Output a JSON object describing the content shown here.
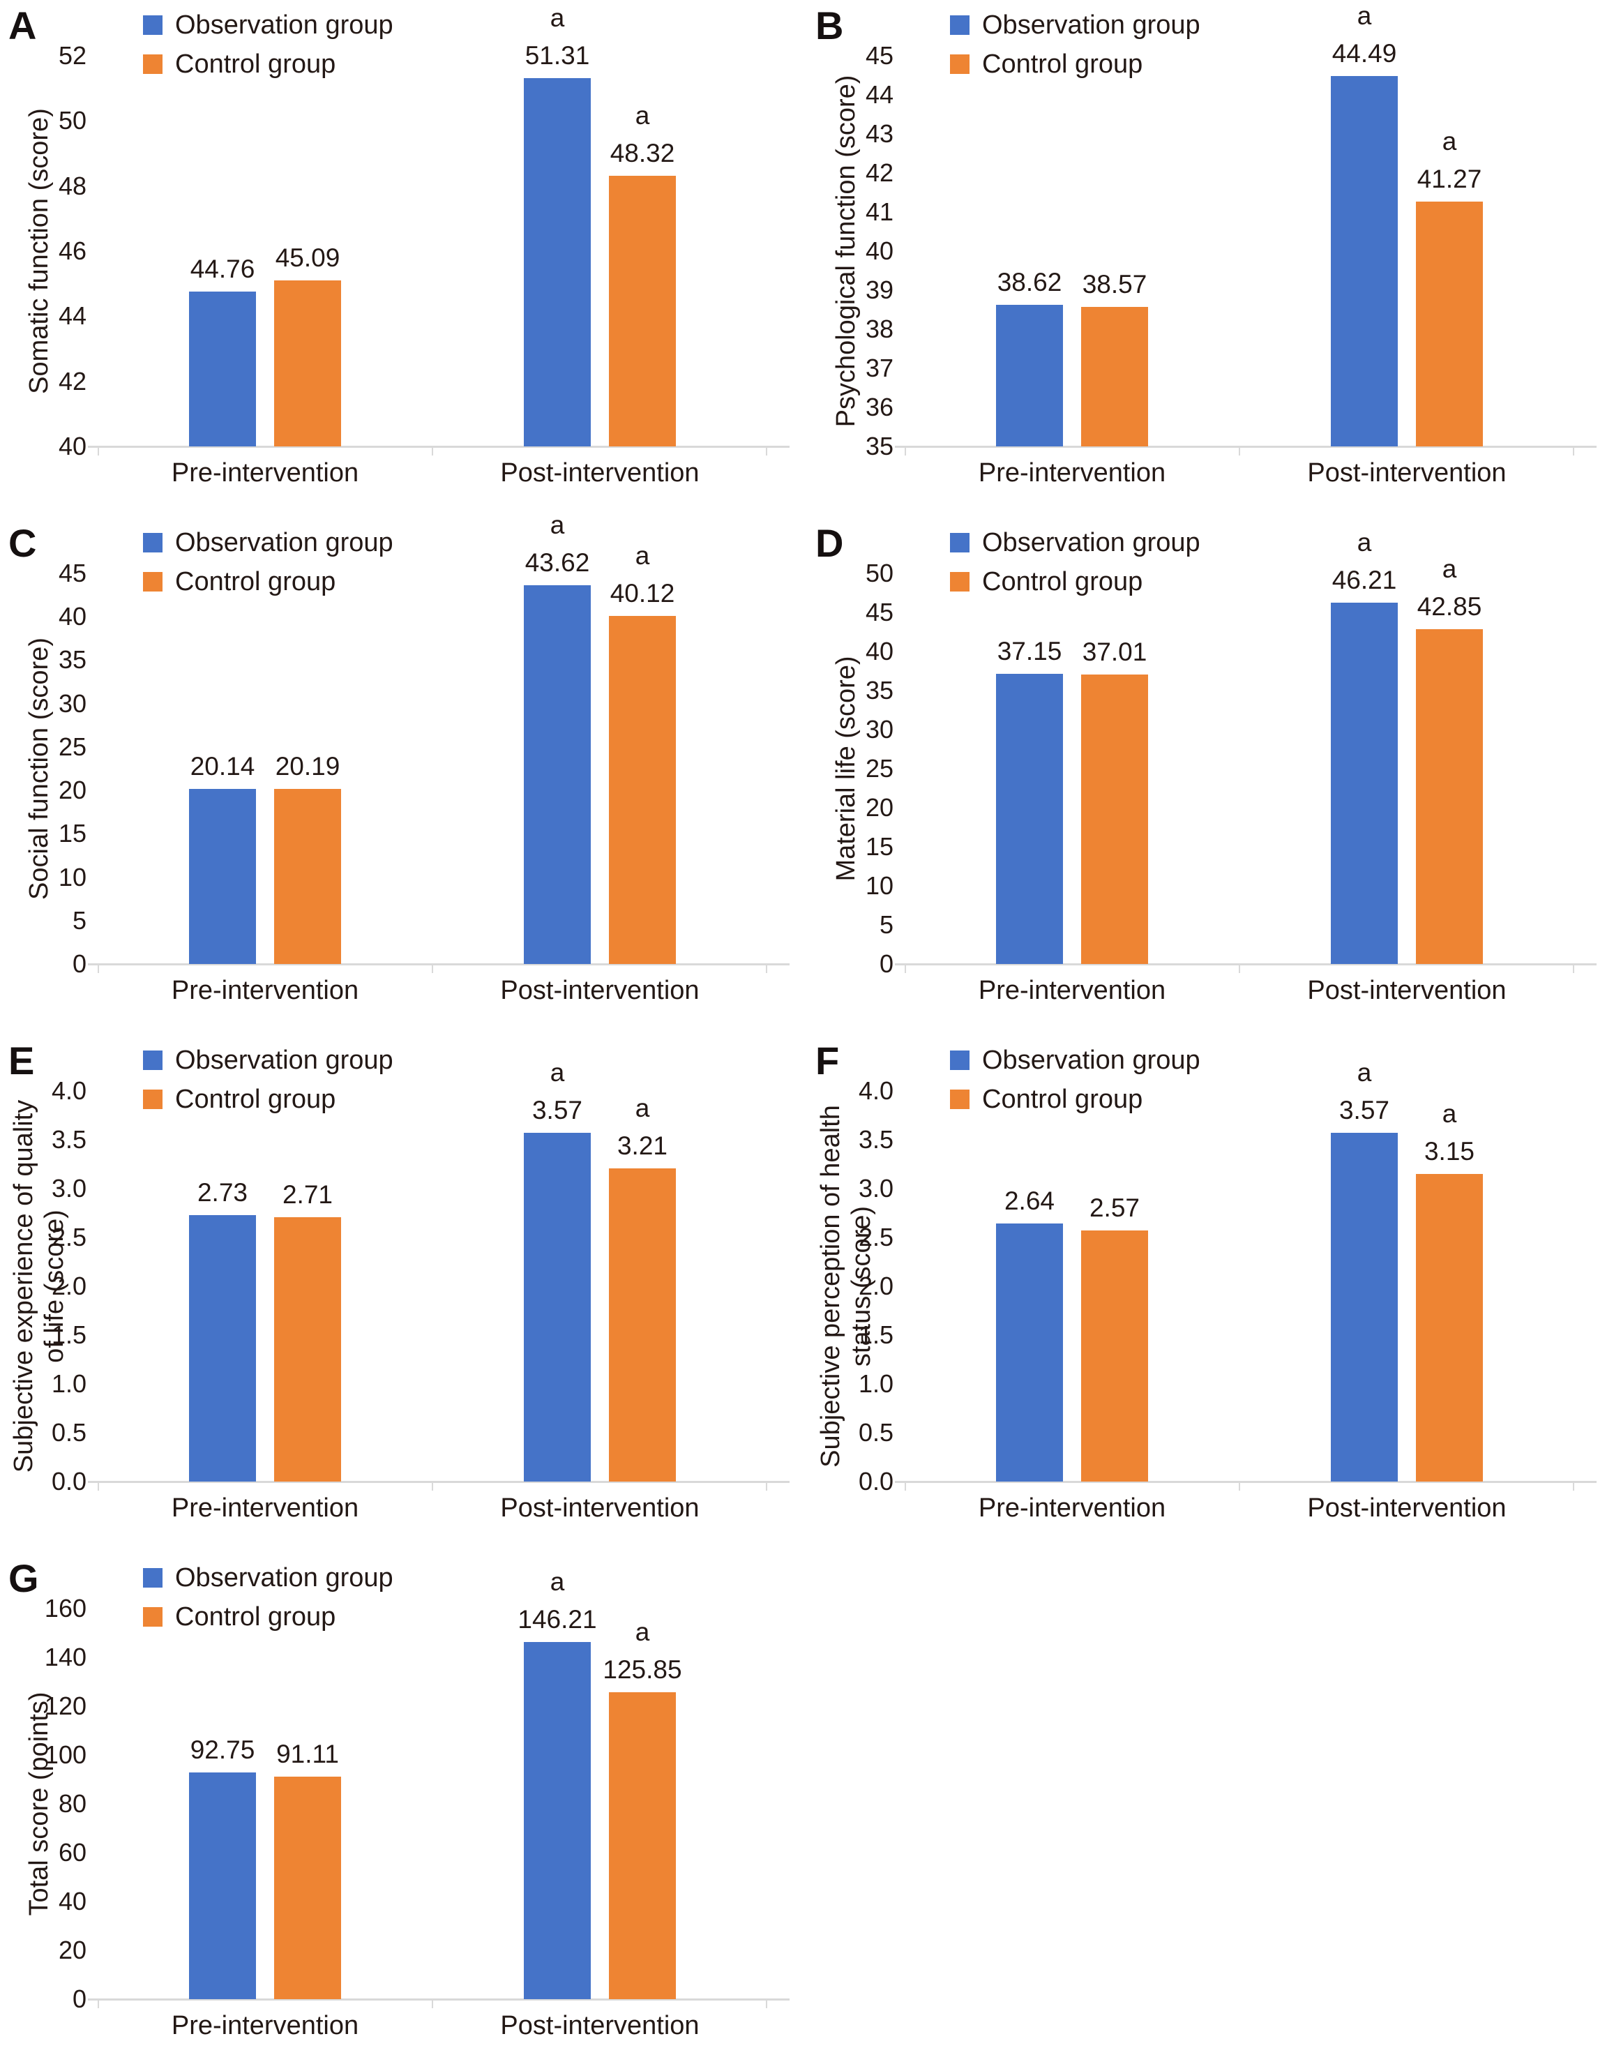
{
  "figure": {
    "legend": [
      {
        "id": "observation",
        "label": "Observation group",
        "color": "#4573C8"
      },
      {
        "id": "control",
        "label": "Control group",
        "color": "#EE8433"
      }
    ],
    "colors": {
      "text": "#231815",
      "axis_line": "#D9D9D9",
      "background": "#FFFFFF"
    },
    "significance_marker": "a",
    "x_categories": [
      "Pre-intervention",
      "Post-intervention"
    ]
  },
  "chart_data": [
    {
      "panel": "A",
      "type": "bar",
      "ylabel": "Somatic function (score)",
      "ymin": 40,
      "ymax": 52,
      "ystep": 2,
      "yticks": [
        "52",
        "50",
        "48",
        "46",
        "44",
        "42",
        "40"
      ],
      "categories": [
        "Pre-intervention",
        "Post-intervention"
      ],
      "legend_position": "top-left",
      "grid": false,
      "series": [
        {
          "name": "Observation group",
          "color_id": "observation",
          "values": [
            44.76,
            51.31
          ],
          "labels": [
            "44.76",
            "51.31"
          ],
          "sig": [
            "",
            "a"
          ]
        },
        {
          "name": "Control group",
          "color_id": "control",
          "values": [
            45.09,
            48.32
          ],
          "labels": [
            "45.09",
            "48.32"
          ],
          "sig": [
            "",
            "a"
          ]
        }
      ]
    },
    {
      "panel": "B",
      "type": "bar",
      "ylabel": "Psychological function (score)",
      "ymin": 35,
      "ymax": 45,
      "ystep": 1,
      "yticks": [
        "45",
        "44",
        "43",
        "42",
        "41",
        "40",
        "39",
        "38",
        "37",
        "36",
        "35"
      ],
      "categories": [
        "Pre-intervention",
        "Post-intervention"
      ],
      "legend_position": "top-left",
      "grid": false,
      "series": [
        {
          "name": "Observation group",
          "color_id": "observation",
          "values": [
            38.62,
            44.49
          ],
          "labels": [
            "38.62",
            "44.49"
          ],
          "sig": [
            "",
            "a"
          ]
        },
        {
          "name": "Control group",
          "color_id": "control",
          "values": [
            38.57,
            41.27
          ],
          "labels": [
            "38.57",
            "41.27"
          ],
          "sig": [
            "",
            "a"
          ]
        }
      ]
    },
    {
      "panel": "C",
      "type": "bar",
      "ylabel": "Social function (score)",
      "ymin": 0,
      "ymax": 45,
      "ystep": 5,
      "yticks": [
        "45",
        "40",
        "35",
        "30",
        "25",
        "20",
        "15",
        "10",
        "5",
        "0"
      ],
      "categories": [
        "Pre-intervention",
        "Post-intervention"
      ],
      "legend_position": "top-left",
      "grid": false,
      "series": [
        {
          "name": "Observation group",
          "color_id": "observation",
          "values": [
            20.14,
            43.62
          ],
          "labels": [
            "20.14",
            "43.62"
          ],
          "sig": [
            "",
            "a"
          ]
        },
        {
          "name": "Control group",
          "color_id": "control",
          "values": [
            20.19,
            40.12
          ],
          "labels": [
            "20.19",
            "40.12"
          ],
          "sig": [
            "",
            "a"
          ]
        }
      ]
    },
    {
      "panel": "D",
      "type": "bar",
      "ylabel": "Material life (score)",
      "ymin": 0,
      "ymax": 50,
      "ystep": 5,
      "yticks": [
        "50",
        "45",
        "40",
        "35",
        "30",
        "25",
        "20",
        "15",
        "10",
        "5",
        "0"
      ],
      "categories": [
        "Pre-intervention",
        "Post-intervention"
      ],
      "legend_position": "top-left",
      "grid": false,
      "series": [
        {
          "name": "Observation group",
          "color_id": "observation",
          "values": [
            37.15,
            46.21
          ],
          "labels": [
            "37.15",
            "46.21"
          ],
          "sig": [
            "",
            "a"
          ]
        },
        {
          "name": "Control group",
          "color_id": "control",
          "values": [
            37.01,
            42.85
          ],
          "labels": [
            "37.01",
            "42.85"
          ],
          "sig": [
            "",
            "a"
          ]
        }
      ]
    },
    {
      "panel": "E",
      "type": "bar",
      "ylabel": "Subjective experience of quality of life (score)",
      "ymin": 0,
      "ymax": 4,
      "ystep": 0.5,
      "yticks": [
        "4.0",
        "3.5",
        "3.0",
        "2.5",
        "2.0",
        "1.5",
        "1.0",
        "0.5",
        "0.0"
      ],
      "categories": [
        "Pre-intervention",
        "Post-intervention"
      ],
      "legend_position": "top-left",
      "grid": false,
      "series": [
        {
          "name": "Observation group",
          "color_id": "observation",
          "values": [
            2.73,
            3.57
          ],
          "labels": [
            "2.73",
            "3.57"
          ],
          "sig": [
            "",
            "a"
          ]
        },
        {
          "name": "Control group",
          "color_id": "control",
          "values": [
            2.71,
            3.21
          ],
          "labels": [
            "2.71",
            "3.21"
          ],
          "sig": [
            "",
            "a"
          ]
        }
      ]
    },
    {
      "panel": "F",
      "type": "bar",
      "ylabel": "Subjective perception of health status (score)",
      "ymin": 0,
      "ymax": 4,
      "ystep": 0.5,
      "yticks": [
        "4.0",
        "3.5",
        "3.0",
        "2.5",
        "2.0",
        "1.5",
        "1.0",
        "0.5",
        "0.0"
      ],
      "categories": [
        "Pre-intervention",
        "Post-intervention"
      ],
      "legend_position": "top-left",
      "grid": false,
      "series": [
        {
          "name": "Observation group",
          "color_id": "observation",
          "values": [
            2.64,
            3.57
          ],
          "labels": [
            "2.64",
            "3.57"
          ],
          "sig": [
            "",
            "a"
          ]
        },
        {
          "name": "Control group",
          "color_id": "control",
          "values": [
            2.57,
            3.15
          ],
          "labels": [
            "2.57",
            "3.15"
          ],
          "sig": [
            "",
            "a"
          ]
        }
      ]
    },
    {
      "panel": "G",
      "type": "bar",
      "ylabel": "Total score (points)",
      "ymin": 0,
      "ymax": 160,
      "ystep": 20,
      "yticks": [
        "160",
        "140",
        "120",
        "100",
        "80",
        "60",
        "40",
        "20",
        "0"
      ],
      "categories": [
        "Pre-intervention",
        "Post-intervention"
      ],
      "legend_position": "top-left",
      "grid": false,
      "series": [
        {
          "name": "Observation group",
          "color_id": "observation",
          "values": [
            92.75,
            146.21
          ],
          "labels": [
            "92.75",
            "146.21"
          ],
          "sig": [
            "",
            "a"
          ]
        },
        {
          "name": "Control group",
          "color_id": "control",
          "values": [
            91.11,
            125.85
          ],
          "labels": [
            "91.11",
            "125.85"
          ],
          "sig": [
            "",
            "a"
          ]
        }
      ]
    }
  ]
}
